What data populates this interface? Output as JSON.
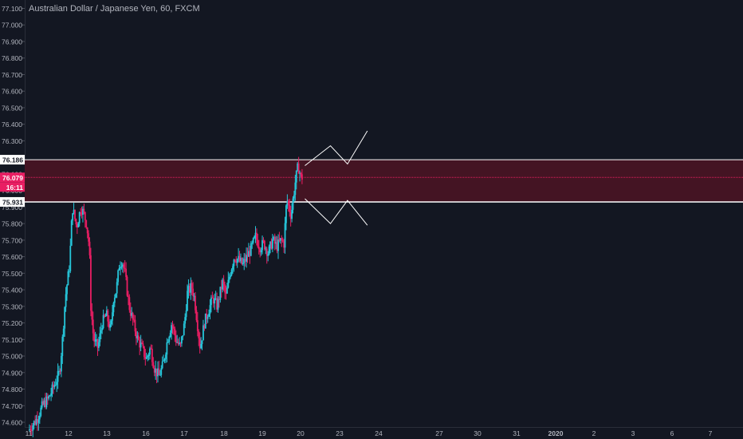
{
  "header": {
    "title": "Australian Dollar / Japanese Yen, 60, FXCM"
  },
  "colors": {
    "background": "#131722",
    "up_candle": "#26c6da",
    "down_candle": "#e91e63",
    "zone_fill": "#4a1423",
    "zone_line": "#ffffff",
    "last_price_line": "#e91e63",
    "axis_text": "#b2b5be",
    "projection_line": "#ffffff"
  },
  "chart_data": {
    "type": "candlestick",
    "title": "Australian Dollar / Japanese Yen, 60, FXCM",
    "ylim": [
      74.58,
      77.16
    ],
    "grid": false,
    "y_ticks": [
      "74.600",
      "74.700",
      "74.800",
      "74.900",
      "75.000",
      "75.100",
      "75.200",
      "75.300",
      "75.400",
      "75.500",
      "75.600",
      "75.700",
      "75.800",
      "75.900",
      "76.000",
      "76.100",
      "76.200",
      "76.300",
      "76.400",
      "76.500",
      "76.600",
      "76.700",
      "76.800",
      "76.900",
      "77.000",
      "77.100"
    ],
    "x_ticks": [
      "11",
      "12",
      "13",
      "16",
      "17",
      "18",
      "19",
      "20",
      "23",
      "24",
      "27",
      "30",
      "31",
      "2020",
      "2",
      "3",
      "6",
      "7"
    ],
    "price_labels": {
      "zone_top": "76.186",
      "zone_bottom": "75.931",
      "last_price": "76.079",
      "countdown": "16:11"
    },
    "zone": {
      "top": 76.186,
      "bottom": 75.931
    },
    "last_price": 76.079,
    "price_path": [
      [
        11.0,
        74.55
      ],
      [
        11.3,
        74.62
      ],
      [
        11.5,
        74.7
      ],
      [
        11.7,
        74.74
      ],
      [
        11.9,
        74.82
      ],
      [
        12.1,
        74.9
      ],
      [
        12.2,
        75.1
      ],
      [
        12.3,
        75.35
      ],
      [
        12.45,
        75.55
      ],
      [
        12.55,
        75.9
      ],
      [
        12.7,
        75.78
      ],
      [
        12.85,
        75.9
      ],
      [
        12.95,
        75.86
      ],
      [
        13.05,
        75.8
      ],
      [
        13.15,
        75.65
      ],
      [
        13.2,
        75.3
      ],
      [
        13.3,
        75.1
      ],
      [
        13.45,
        75.05
      ],
      [
        13.6,
        75.2
      ],
      [
        13.75,
        75.25
      ],
      [
        13.9,
        75.15
      ],
      [
        14.0,
        75.35
      ],
      [
        14.1,
        75.4
      ],
      [
        14.2,
        75.55
      ],
      [
        14.3,
        75.58
      ],
      [
        14.4,
        75.5
      ],
      [
        14.55,
        75.3
      ],
      [
        14.7,
        75.2
      ],
      [
        14.85,
        75.1
      ],
      [
        15.0,
        75.05
      ],
      [
        15.15,
        74.98
      ],
      [
        15.3,
        75.05
      ],
      [
        15.45,
        74.92
      ],
      [
        15.6,
        74.88
      ],
      [
        15.75,
        74.95
      ],
      [
        15.9,
        75.1
      ],
      [
        16.05,
        75.2
      ],
      [
        16.2,
        75.1
      ],
      [
        16.35,
        75.05
      ],
      [
        16.5,
        75.2
      ],
      [
        16.6,
        75.38
      ],
      [
        16.75,
        75.42
      ],
      [
        16.85,
        75.35
      ],
      [
        16.95,
        75.2
      ],
      [
        17.05,
        75.05
      ],
      [
        17.2,
        75.2
      ],
      [
        17.35,
        75.28
      ],
      [
        17.5,
        75.35
      ],
      [
        17.65,
        75.3
      ],
      [
        17.75,
        75.38
      ],
      [
        17.85,
        75.45
      ],
      [
        17.95,
        75.35
      ],
      [
        18.1,
        75.5
      ],
      [
        18.25,
        75.6
      ],
      [
        18.4,
        75.58
      ],
      [
        18.55,
        75.55
      ],
      [
        18.7,
        75.6
      ],
      [
        18.85,
        75.65
      ],
      [
        19.0,
        75.72
      ],
      [
        19.15,
        75.66
      ],
      [
        19.3,
        75.68
      ],
      [
        19.45,
        75.62
      ],
      [
        19.6,
        75.7
      ],
      [
        19.75,
        75.66
      ],
      [
        19.9,
        75.7
      ],
      [
        20.0,
        75.68
      ],
      [
        20.1,
        75.95
      ],
      [
        20.25,
        75.85
      ],
      [
        20.4,
        76.05
      ],
      [
        20.5,
        76.15
      ],
      [
        20.6,
        76.08
      ]
    ],
    "projection": {
      "upper": [
        [
          20.7,
          76.15
        ],
        [
          21.6,
          76.27
        ],
        [
          22.2,
          76.16
        ],
        [
          22.9,
          76.36
        ]
      ],
      "lower": [
        [
          20.7,
          75.95
        ],
        [
          21.6,
          75.8
        ],
        [
          22.2,
          75.94
        ],
        [
          22.9,
          75.79
        ]
      ]
    }
  }
}
